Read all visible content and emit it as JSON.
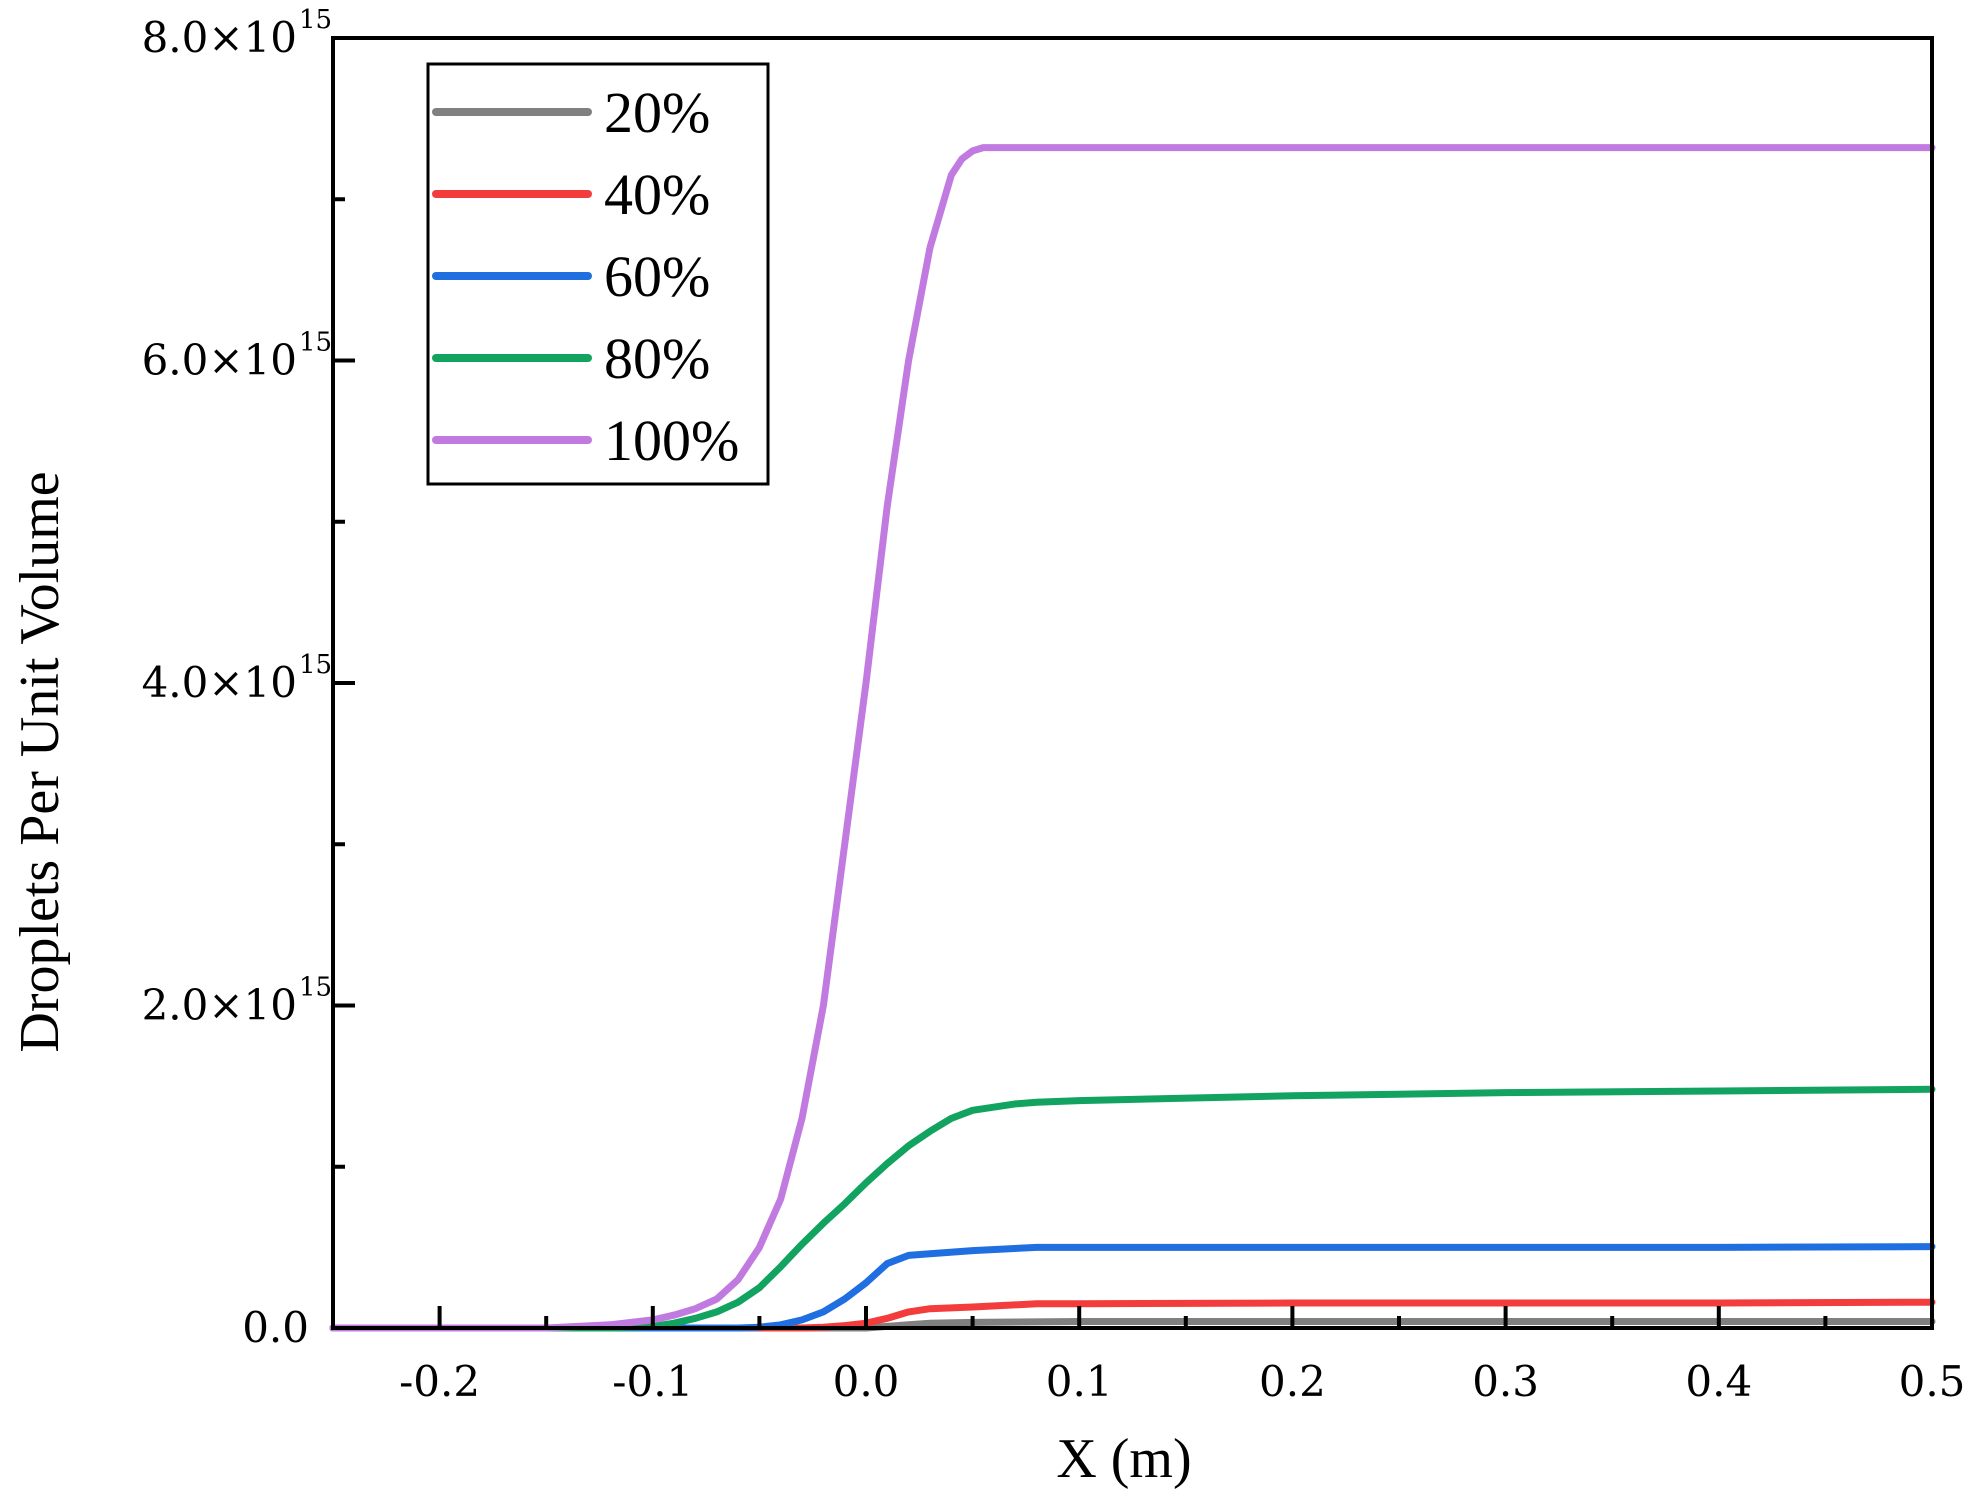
{
  "chart_data": {
    "type": "line",
    "title": "",
    "xlabel": "X (m)",
    "ylabel": "Droplets Per Unit Volume",
    "xlim": [
      -0.25,
      0.5
    ],
    "ylim": [
      0,
      8000000000000000.0
    ],
    "grid": false,
    "legend_position": "top-left",
    "x_ticks": [
      -0.2,
      -0.1,
      0.0,
      0.1,
      0.2,
      0.3,
      0.4,
      0.5
    ],
    "x_tick_labels": [
      "-0.2",
      "-0.1",
      "0.0",
      "0.1",
      "0.2",
      "0.3",
      "0.4",
      "0.5"
    ],
    "y_ticks": [
      0,
      2000000000000000.0,
      4000000000000000.0,
      6000000000000000.0,
      8000000000000000.0
    ],
    "y_tick_labels": [
      {
        "mantissa": "0.0",
        "exponent": ""
      },
      {
        "mantissa": "2.0×10",
        "exponent": "15"
      },
      {
        "mantissa": "4.0×10",
        "exponent": "15"
      },
      {
        "mantissa": "6.0×10",
        "exponent": "15"
      },
      {
        "mantissa": "8.0×10",
        "exponent": "15"
      }
    ],
    "series": [
      {
        "name": "20%",
        "color": "#808080",
        "x": [
          -0.25,
          0.0,
          0.01,
          0.02,
          0.03,
          0.05,
          0.1,
          0.2,
          0.3,
          0.4,
          0.5
        ],
        "y": [
          0,
          0,
          10000000000000.0,
          20000000000000.0,
          30000000000000.0,
          35000000000000.0,
          40000000000000.0,
          40000000000000.0,
          40000000000000.0,
          40000000000000.0,
          40000000000000.0
        ]
      },
      {
        "name": "40%",
        "color": "#f33c3c",
        "x": [
          -0.25,
          -0.03,
          -0.02,
          -0.01,
          0.0,
          0.01,
          0.02,
          0.03,
          0.05,
          0.08,
          0.1,
          0.2,
          0.3,
          0.4,
          0.5
        ],
        "y": [
          0,
          0,
          5000000000000.0,
          15000000000000.0,
          30000000000000.0,
          60000000000000.0,
          100000000000000.0,
          120000000000000.0,
          130000000000000.0,
          150000000000000.0,
          150000000000000.0,
          155000000000000.0,
          155000000000000.0,
          155000000000000.0,
          160000000000000.0
        ]
      },
      {
        "name": "60%",
        "color": "#1f6fe0",
        "x": [
          -0.25,
          -0.06,
          -0.05,
          -0.04,
          -0.03,
          -0.02,
          -0.01,
          0.0,
          0.01,
          0.02,
          0.03,
          0.05,
          0.08,
          0.1,
          0.2,
          0.3,
          0.4,
          0.5
        ],
        "y": [
          0,
          0,
          5000000000000.0,
          20000000000000.0,
          50000000000000.0,
          100000000000000.0,
          180000000000000.0,
          280000000000000.0,
          400000000000000.0,
          450000000000000.0,
          460000000000000.0,
          480000000000000.0,
          500000000000000.0,
          500000000000000.0,
          500000000000000.0,
          500000000000000.0,
          500000000000000.0,
          505000000000000.0
        ]
      },
      {
        "name": "80%",
        "color": "#13a360",
        "x": [
          -0.25,
          -0.12,
          -0.1,
          -0.09,
          -0.08,
          -0.07,
          -0.06,
          -0.05,
          -0.04,
          -0.03,
          -0.02,
          -0.01,
          0.0,
          0.01,
          0.02,
          0.03,
          0.04,
          0.05,
          0.07,
          0.08,
          0.1,
          0.2,
          0.3,
          0.4,
          0.5
        ],
        "y": [
          0,
          0,
          10000000000000.0,
          30000000000000.0,
          60000000000000.0,
          100000000000000.0,
          160000000000000.0,
          250000000000000.0,
          380000000000000.0,
          520000000000000.0,
          650000000000000.0,
          770000000000000.0,
          900000000000000.0,
          1020000000000000.0,
          1130000000000000.0,
          1220000000000000.0,
          1300000000000000.0,
          1350000000000000.0,
          1390000000000000.0,
          1400000000000000.0,
          1410000000000000.0,
          1440000000000000.0,
          1460000000000000.0,
          1470000000000000.0,
          1480000000000000.0
        ]
      },
      {
        "name": "100%",
        "color": "#c07ae0",
        "x": [
          -0.25,
          -0.15,
          -0.12,
          -0.1,
          -0.09,
          -0.08,
          -0.07,
          -0.06,
          -0.05,
          -0.04,
          -0.03,
          -0.02,
          -0.01,
          0.0,
          0.01,
          0.02,
          0.03,
          0.04,
          0.045,
          0.05,
          0.055,
          0.07,
          0.1,
          0.2,
          0.3,
          0.4,
          0.5
        ],
        "y": [
          0,
          0,
          20000000000000.0,
          50000000000000.0,
          80000000000000.0,
          120000000000000.0,
          180000000000000.0,
          300000000000000.0,
          500000000000000.0,
          800000000000000.0,
          1300000000000000.0,
          2000000000000000.0,
          3000000000000000.0,
          4000000000000000.0,
          5100000000000000.0,
          6000000000000000.0,
          6700000000000000.0,
          7150000000000000.0,
          7250000000000000.0,
          7300000000000000.0,
          7320000000000000.0,
          7320000000000000.0,
          7320000000000000.0,
          7320000000000000.0,
          7320000000000000.0,
          7320000000000000.0,
          7320000000000000.0
        ]
      }
    ]
  }
}
